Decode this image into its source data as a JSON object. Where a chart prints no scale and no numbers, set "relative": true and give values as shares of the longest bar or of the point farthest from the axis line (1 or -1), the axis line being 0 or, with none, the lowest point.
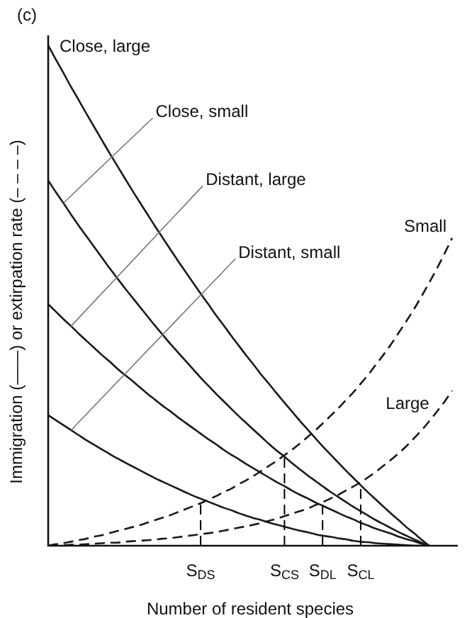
{
  "chart_data": {
    "type": "line",
    "title": "(c)",
    "xlabel": "Number of resident species",
    "ylabel": "Immigration (——) or extirpation rate (– – – –)",
    "relative": true,
    "categories": [
      null,
      null,
      null,
      null,
      null,
      null,
      null,
      null,
      null,
      null,
      null,
      null,
      null,
      null,
      null,
      null,
      null,
      null,
      null,
      null,
      "S$_{DS}$",
      null,
      null,
      null,
      null,
      null,
      null,
      null,
      null,
      null,
      null,
      "S$_{CS}$",
      null,
      null,
      null,
      null,
      "S$_{DL}$",
      null,
      null,
      null,
      null,
      "S$_{CL}$",
      null,
      null,
      null,
      null,
      null,
      null,
      null,
      null,
      null,
      null,
      null,
      null
    ],
    "tick_labels": "x",
    "marker": "none",
    "ref_lines": [
      {
        "axis": "x",
        "value": "S$_{DS}$",
        "line_style": "dashed",
        "color": "#000000"
      },
      {
        "axis": "x",
        "value": "S$_{CS}$",
        "line_style": "dashed",
        "color": "#000000"
      },
      {
        "axis": "x",
        "value": "S$_{DL}$",
        "line_style": "dashed",
        "color": "#000000"
      },
      {
        "axis": "x",
        "value": "S$_{CL}$",
        "line_style": "dashed",
        "color": "#000000"
      }
    ],
    "series": [
      {
        "name": "Close, large",
        "color": "#1a1a1a",
        "line_style": "solid",
        "values": [
          1,
          0.972,
          0.945,
          0.917,
          0.891,
          0.864,
          0.838,
          0.812,
          0.786,
          0.761,
          0.736,
          0.711,
          0.687,
          0.663,
          0.639,
          0.616,
          0.593,
          0.57,
          0.548,
          0.526,
          0.504,
          0.483,
          0.461,
          0.441,
          0.42,
          0.4,
          0.38,
          0.361,
          0.341,
          0.323,
          0.304,
          0.286,
          0.268,
          0.25,
          0.233,
          0.216,
          0.199,
          0.183,
          0.167,
          0.151,
          0.136,
          0.121,
          0.106,
          0.092,
          0.078,
          0.064,
          0.051,
          0.037,
          0.025,
          0.012,
          0,
          null,
          null,
          null
        ]
      },
      {
        "name": "Close, small",
        "color": "#1a1a1a",
        "line_style": "solid",
        "values": [
          0.73,
          0.707,
          0.685,
          0.662,
          0.64,
          0.619,
          0.598,
          0.577,
          0.556,
          0.536,
          0.516,
          0.497,
          0.478,
          0.459,
          0.44,
          0.422,
          0.404,
          0.387,
          0.37,
          0.353,
          0.336,
          0.32,
          0.304,
          0.289,
          0.274,
          0.259,
          0.245,
          0.231,
          0.217,
          0.203,
          0.19,
          0.178,
          0.165,
          0.153,
          0.141,
          0.13,
          0.119,
          0.108,
          0.098,
          0.088,
          0.078,
          0.069,
          0.06,
          0.051,
          0.043,
          0.035,
          0.027,
          0.02,
          0.013,
          0.006,
          0,
          null,
          null,
          null
        ]
      },
      {
        "name": "Distant, large",
        "color": "#1a1a1a",
        "line_style": "solid",
        "values": [
          0.483,
          0.468,
          0.453,
          0.439,
          0.424,
          0.41,
          0.396,
          0.382,
          0.369,
          0.355,
          0.342,
          0.33,
          0.317,
          0.304,
          0.292,
          0.28,
          0.269,
          0.257,
          0.246,
          0.235,
          0.224,
          0.213,
          0.203,
          0.192,
          0.182,
          0.173,
          0.163,
          0.154,
          0.145,
          0.136,
          0.127,
          0.119,
          0.11,
          0.102,
          0.095,
          0.087,
          0.08,
          0.073,
          0.066,
          0.059,
          0.053,
          0.046,
          0.04,
          0.034,
          0.029,
          0.024,
          0.018,
          0.013,
          0.009,
          0.004,
          0,
          null,
          null,
          null
        ]
      },
      {
        "name": "Distant, small",
        "color": "#1a1a1a",
        "line_style": "solid",
        "values": [
          0.261,
          0.251,
          0.241,
          0.231,
          0.221,
          0.211,
          0.202,
          0.193,
          0.184,
          0.175,
          0.167,
          0.159,
          0.151,
          0.143,
          0.135,
          0.128,
          0.121,
          0.114,
          0.107,
          0.1,
          0.094,
          0.088,
          0.082,
          0.076,
          0.071,
          0.065,
          0.06,
          0.055,
          0.051,
          0.046,
          0.042,
          0.038,
          0.034,
          0.03,
          0.027,
          0.023,
          0.02,
          0.018,
          0.015,
          0.013,
          0.01,
          0.008,
          0.007,
          0.005,
          0.004,
          0.003,
          0.002,
          0.001,
          0,
          0,
          0,
          null,
          null,
          null
        ]
      },
      {
        "name": "Small",
        "color": "#1a1a1a",
        "line_style": "dashed",
        "values": [
          0,
          0.003,
          0.005,
          0.008,
          0.011,
          0.014,
          0.018,
          0.021,
          0.025,
          0.029,
          0.033,
          0.037,
          0.041,
          0.046,
          0.051,
          0.056,
          0.061,
          0.067,
          0.073,
          0.079,
          0.085,
          0.092,
          0.099,
          0.107,
          0.114,
          0.123,
          0.131,
          0.14,
          0.15,
          0.16,
          0.17,
          0.181,
          0.192,
          0.204,
          0.217,
          0.23,
          0.244,
          0.259,
          0.274,
          0.29,
          0.306,
          0.324,
          0.342,
          0.362,
          0.382,
          0.403,
          0.426,
          0.449,
          0.473,
          0.499,
          0.526,
          0.554,
          0.584,
          0.615
        ]
      },
      {
        "name": "Large",
        "color": "#1a1a1a",
        "line_style": "dashed",
        "values": [
          0,
          0.001,
          0.001,
          0.002,
          0.002,
          0.003,
          0.004,
          0.005,
          0.006,
          0.006,
          0.008,
          0.009,
          0.01,
          0.011,
          0.012,
          0.014,
          0.015,
          0.017,
          0.019,
          0.021,
          0.023,
          0.025,
          0.027,
          0.03,
          0.033,
          0.036,
          0.039,
          0.042,
          0.046,
          0.05,
          0.054,
          0.059,
          0.064,
          0.069,
          0.074,
          0.081,
          0.087,
          0.094,
          0.101,
          0.11,
          0.118,
          0.127,
          0.137,
          0.148,
          0.16,
          0.172,
          0.185,
          0.199,
          0.215,
          0.231,
          0.249,
          0.268,
          0.288,
          0.31
        ]
      }
    ]
  }
}
